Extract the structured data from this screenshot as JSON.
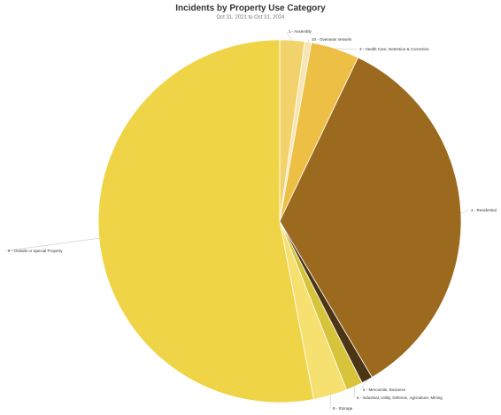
{
  "chart_data": {
    "type": "pie",
    "title": "Incidents by Property Use Category",
    "subtitle": "Oct 31, 2021 to Oct 31, 2024",
    "slices": [
      {
        "label": "1 - Assembly",
        "value": 2.2,
        "color": "#f2d26a"
      },
      {
        "label": "10 - Overseas Vessels",
        "value": 0.6,
        "color": "#f7e6b2"
      },
      {
        "label": "3 - Health Care, Detention & Correction",
        "value": 4.3,
        "color": "#eebf45"
      },
      {
        "label": "4 - Residential",
        "value": 34.4,
        "color": "#9b6a1e"
      },
      {
        "label": "5 - Mercantile, Business",
        "value": 1.0,
        "color": "#4c3514"
      },
      {
        "label": "6 - Industrial, Utility, Defense, Agriculture, Mining",
        "value": 1.5,
        "color": "#d7c43a"
      },
      {
        "label": "8 - Storage",
        "value": 3.0,
        "color": "#f6e070"
      },
      {
        "label": "9 - Outside or Special Property",
        "value": 53.0,
        "color": "#f0d447"
      }
    ]
  }
}
